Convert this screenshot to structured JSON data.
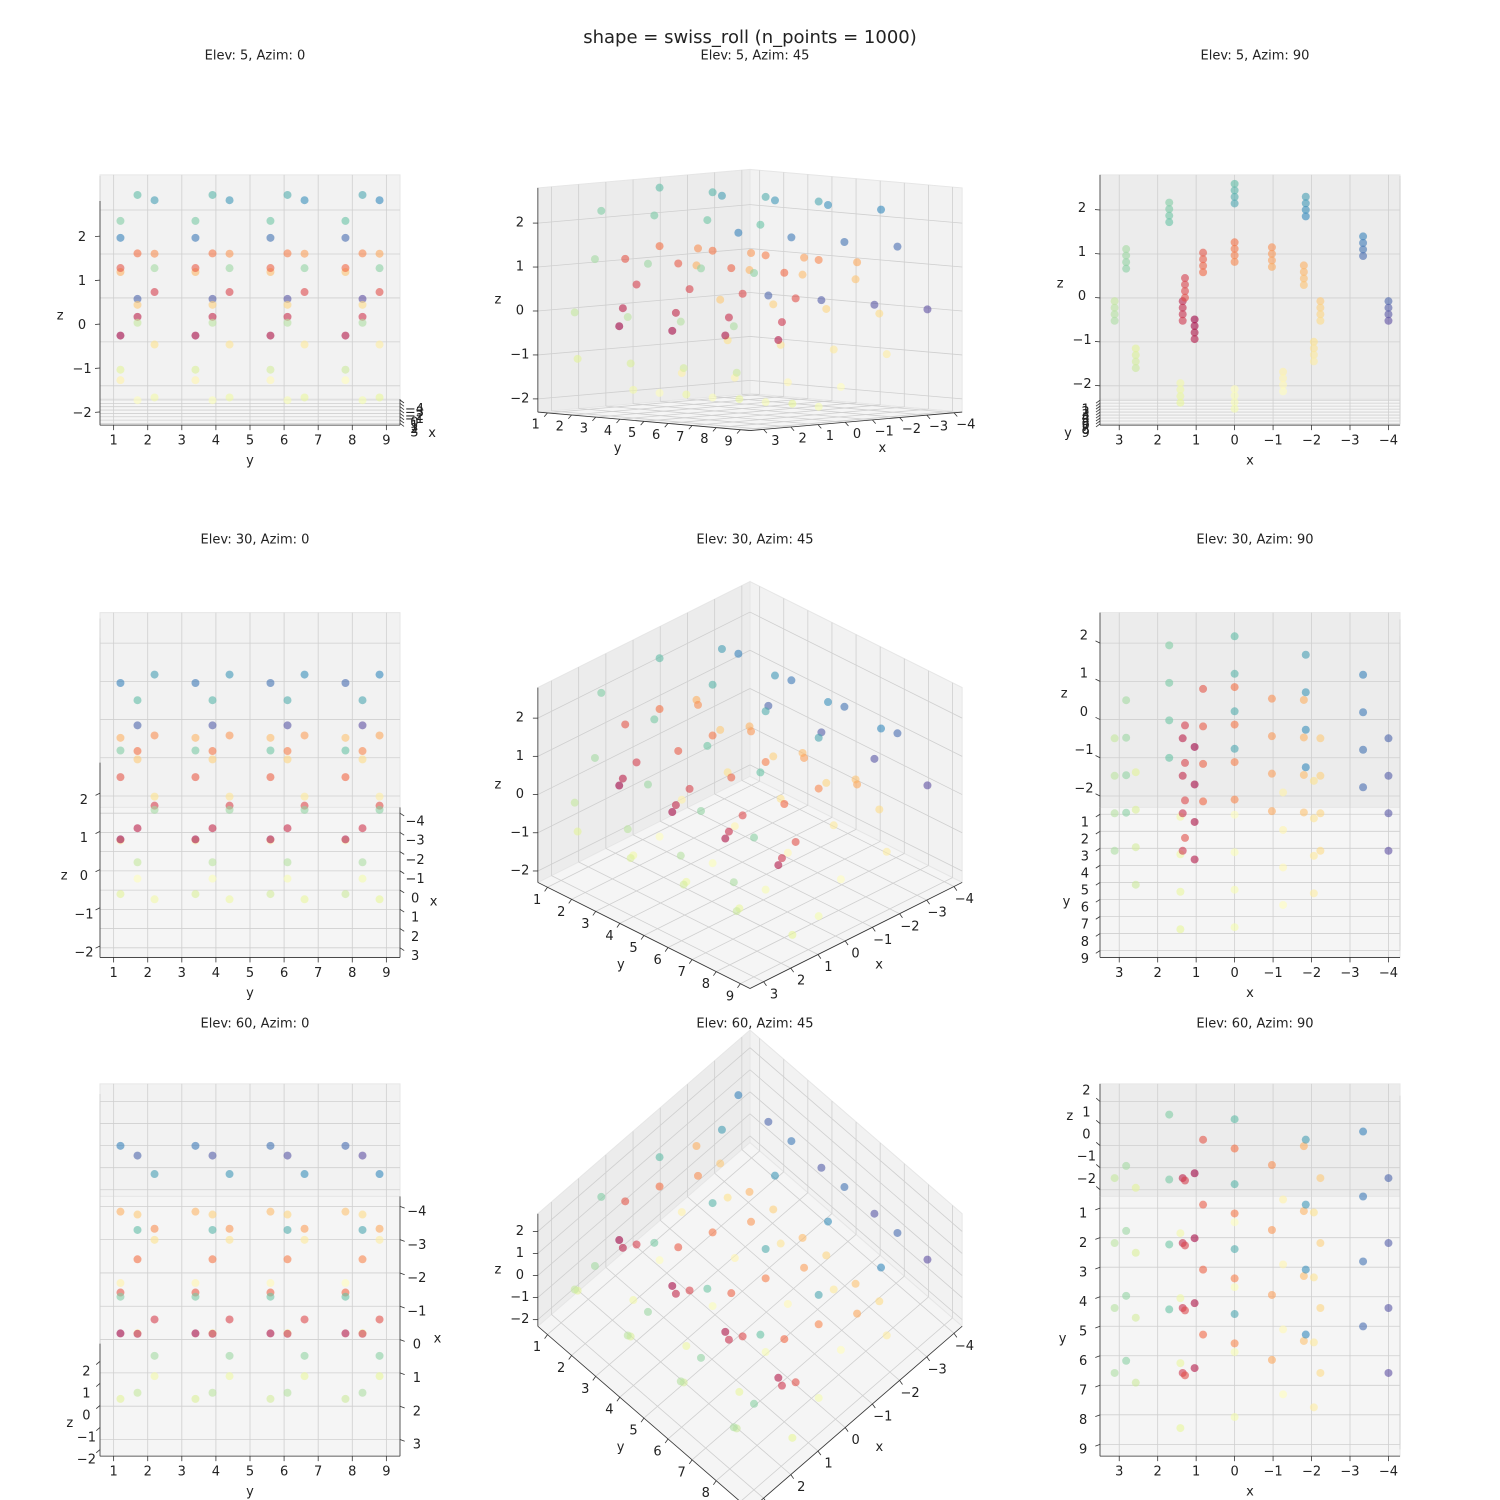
{
  "chart_data": {
    "type": "scatter3d",
    "title": "shape = swiss_roll (n_points = 1000)",
    "views": [
      {
        "title": "Elev: 5, Azim: 0",
        "elev": 5,
        "azim": 0
      },
      {
        "title": "Elev: 5, Azim: 45",
        "elev": 5,
        "azim": 45
      },
      {
        "title": "Elev: 5, Azim: 90",
        "elev": 5,
        "azim": 90
      },
      {
        "title": "Elev: 30, Azim: 0",
        "elev": 30,
        "azim": 0
      },
      {
        "title": "Elev: 30, Azim: 45",
        "elev": 30,
        "azim": 45
      },
      {
        "title": "Elev: 30, Azim: 90",
        "elev": 30,
        "azim": 90
      },
      {
        "title": "Elev: 60, Azim: 0",
        "elev": 60,
        "azim": 0
      },
      {
        "title": "Elev: 60, Azim: 45",
        "elev": 60,
        "azim": 45
      },
      {
        "title": "Elev: 60, Azim: 90",
        "elev": 60,
        "azim": 90
      }
    ],
    "xlabel": "x",
    "ylabel": "y",
    "zlabel": "z",
    "xlim": [
      -4.3,
      3.5
    ],
    "ylim": [
      0.6,
      9.4
    ],
    "zlim": [
      -2.3,
      2.8
    ],
    "xticks": [
      {
        "value": -4,
        "label": "−4"
      },
      {
        "value": -3,
        "label": "−3"
      },
      {
        "value": -2,
        "label": "−2"
      },
      {
        "value": -1,
        "label": "−1"
      },
      0,
      1,
      2,
      3
    ],
    "yticks": [
      1,
      2,
      3,
      4,
      5,
      6,
      7,
      8,
      9
    ],
    "zticks": [
      {
        "value": -2,
        "label": "−2"
      },
      {
        "value": -1,
        "label": "−1"
      },
      0,
      1,
      2
    ],
    "colormap": [
      "#9e0142",
      "#d53e4f",
      "#f46d43",
      "#fdae61",
      "#fee08b",
      "#ffffbf",
      "#e6f598",
      "#abdda4",
      "#66c2a5",
      "#3288bd",
      "#5e4fa2"
    ],
    "alpha": 0.6,
    "x": [
      1.04,
      1.04,
      1.04,
      1.04,
      1.35,
      1.35,
      1.35,
      1.35,
      1.29,
      1.29,
      1.29,
      1.29,
      0.82,
      0.82,
      0.82,
      0.82,
      0,
      0,
      0,
      0,
      -0.97,
      -0.97,
      -0.97,
      -0.97,
      -1.8,
      -1.8,
      -1.8,
      -1.8,
      -2.23,
      -2.23,
      -2.23,
      -2.23,
      -2.06,
      -2.06,
      -2.06,
      -2.06,
      -1.26,
      -1.26,
      -1.26,
      -1.26,
      0,
      0,
      0,
      0,
      1.41,
      1.41,
      1.41,
      1.41,
      2.57,
      2.57,
      2.57,
      2.57,
      3.12,
      3.12,
      3.12,
      3.12,
      2.82,
      2.82,
      2.82,
      2.82,
      1.7,
      1.7,
      1.7,
      1.7,
      0,
      0,
      0,
      0,
      -1.85,
      -1.85,
      -1.85,
      -1.85,
      -3.34,
      -3.34,
      -3.34,
      -3.34,
      -4,
      -4,
      -4,
      -4
    ],
    "y": [
      1.2,
      3.4,
      5.6,
      7.8,
      1.7,
      3.9,
      6.1,
      8.3,
      2.2,
      4.4,
      6.6,
      8.8,
      1.2,
      3.4,
      5.6,
      7.8,
      1.7,
      3.9,
      6.1,
      8.3,
      2.2,
      4.4,
      6.6,
      8.8,
      1.2,
      3.4,
      5.6,
      7.8,
      1.7,
      3.9,
      6.1,
      8.3,
      2.2,
      4.4,
      6.6,
      8.8,
      1.2,
      3.4,
      5.6,
      7.8,
      1.7,
      3.9,
      6.1,
      8.3,
      2.2,
      4.4,
      6.6,
      8.8,
      1.2,
      3.4,
      5.6,
      7.8,
      1.7,
      3.9,
      6.1,
      8.3,
      2.2,
      4.4,
      6.6,
      8.8,
      1.2,
      3.4,
      5.6,
      7.8,
      1.7,
      3.9,
      6.1,
      8.3,
      2.2,
      4.4,
      6.6,
      8.8,
      1.2,
      3.4,
      5.6,
      7.8,
      1.7,
      3.9,
      6.1,
      8.3
    ],
    "z": [
      -0.45,
      -0.45,
      -0.45,
      -0.45,
      0,
      0,
      0,
      0,
      0.56,
      0.56,
      0.56,
      0.56,
      1.07,
      1.07,
      1.07,
      1.07,
      1.34,
      1.34,
      1.34,
      1.34,
      1.26,
      1.26,
      1.26,
      1.26,
      0.78,
      0.78,
      0.78,
      0.78,
      0,
      0,
      0,
      0,
      -0.89,
      -0.89,
      -0.89,
      -0.89,
      -1.64,
      -1.64,
      -1.64,
      -1.64,
      -2,
      -2,
      -2,
      -2,
      -1.83,
      -1.83,
      -1.83,
      -1.83,
      -1.11,
      -1.11,
      -1.11,
      -1.11,
      0,
      0,
      0,
      0,
      1.22,
      1.22,
      1.22,
      1.22,
      2.21,
      2.21,
      2.21,
      2.21,
      2.67,
      2.67,
      2.67,
      2.67,
      2.41,
      2.41,
      2.41,
      2.41,
      1.44,
      1.44,
      1.44,
      1.44,
      0,
      0,
      0,
      0
    ]
  }
}
